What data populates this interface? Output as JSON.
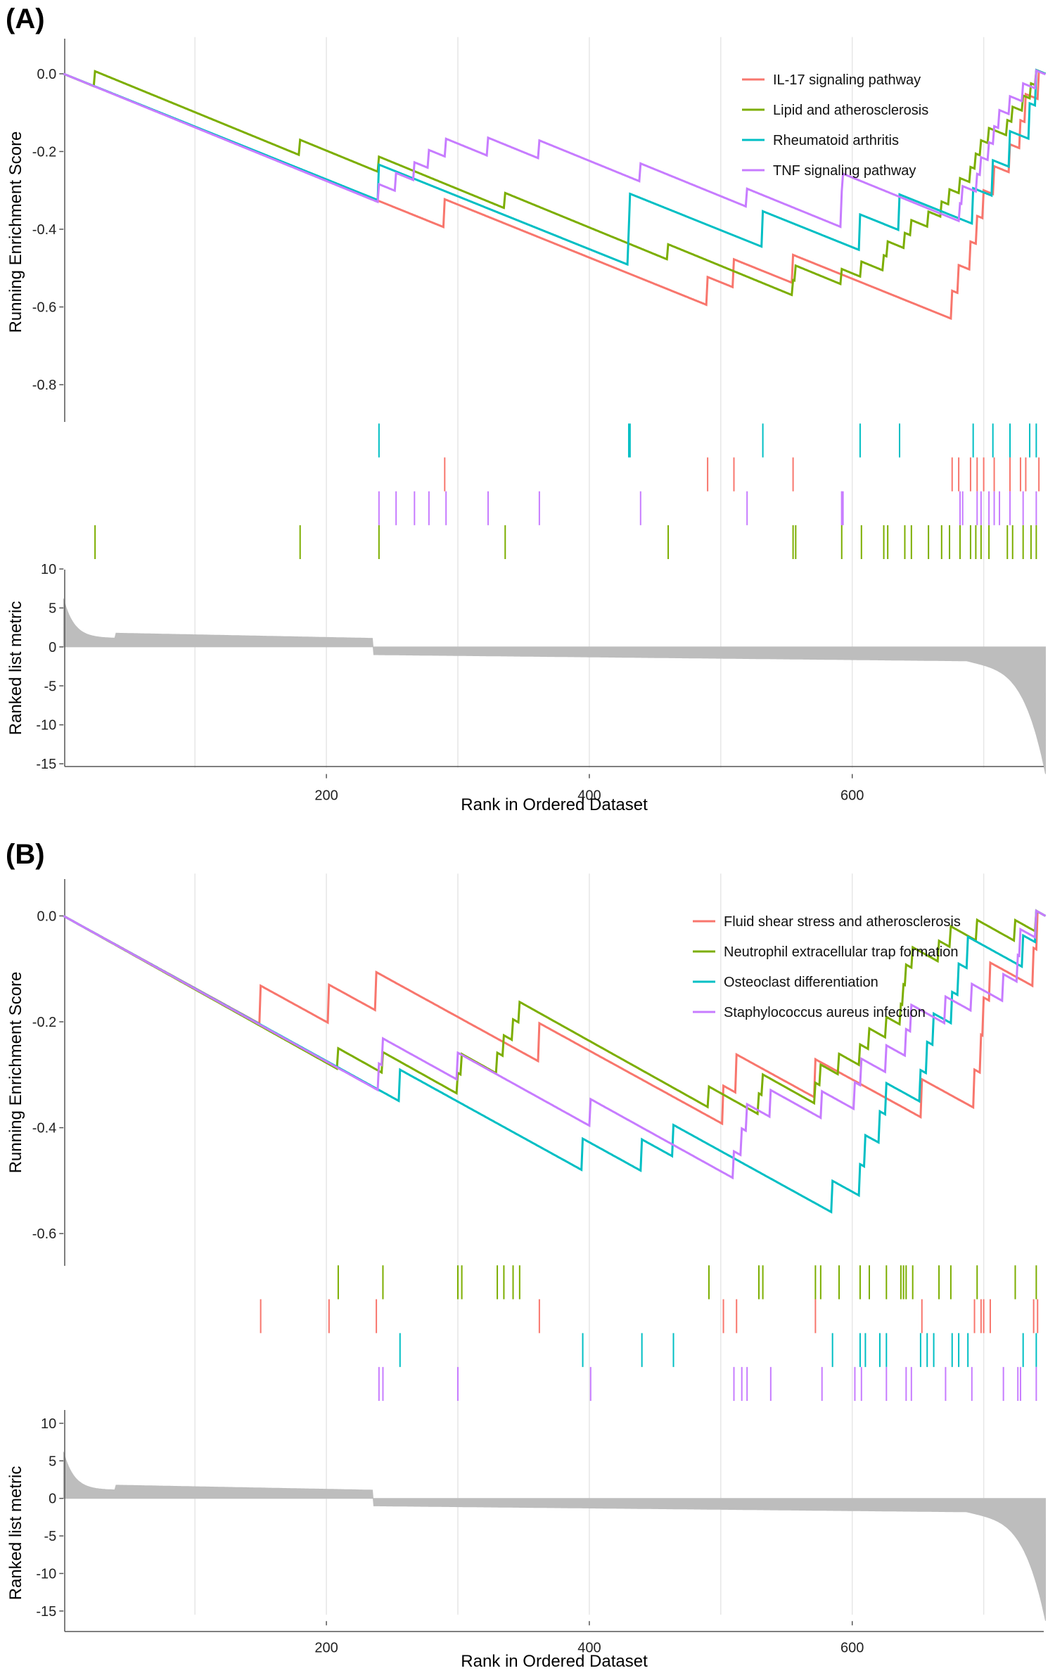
{
  "panels": [
    {
      "label": "(A)",
      "es_axis": {
        "title": "Running Enrichment Score",
        "ylim": [
          -0.9,
          0.04
        ],
        "ticks": [
          0.0,
          -0.2,
          -0.4,
          -0.6,
          -0.8
        ],
        "tick_labels": [
          "0.0",
          "-0.2",
          "-0.4",
          "-0.6",
          "-0.8"
        ]
      },
      "metric_axis": {
        "title": "Ranked list metric",
        "ylim": [
          -15.5,
          11
        ],
        "ticks": [
          10,
          5,
          0,
          -5,
          -10,
          -15
        ],
        "tick_labels": [
          "10",
          "5",
          "0",
          "-5",
          "-10",
          "-15"
        ]
      },
      "x_axis": {
        "title": "Rank in Ordered Dataset",
        "xlim": [
          0,
          747
        ],
        "ticks": [
          200,
          400,
          600
        ],
        "tick_labels": [
          "200",
          "400",
          "600"
        ],
        "minor_grid": [
          100,
          300,
          500,
          700
        ]
      },
      "legend_position": "top-right"
    },
    {
      "label": "(B)",
      "es_axis": {
        "title": "Running Enrichment Score",
        "ylim": [
          -0.66,
          0.04
        ],
        "ticks": [
          0.0,
          -0.2,
          -0.4,
          -0.6
        ],
        "tick_labels": [
          "0.0",
          "-0.2",
          "-0.4",
          "-0.6"
        ]
      },
      "metric_axis": {
        "title": "Ranked list metric",
        "ylim": [
          -15.5,
          12
        ],
        "ticks": [
          10,
          5,
          0,
          -5,
          -10,
          -15
        ],
        "tick_labels": [
          "10",
          "5",
          "0",
          "-5",
          "-10",
          "-15"
        ]
      },
      "x_axis": {
        "title": "Rank in Ordered Dataset",
        "xlim": [
          0,
          747
        ],
        "ticks": [
          200,
          400,
          600
        ],
        "tick_labels": [
          "200",
          "400",
          "600"
        ],
        "minor_grid": [
          100,
          300,
          500,
          700
        ]
      },
      "legend_position": "top-right"
    }
  ],
  "chart_data": [
    {
      "type": "line",
      "title": "(A)",
      "xlabel": "Rank in Ordered Dataset",
      "ylabel": "Running Enrichment Score",
      "xlim": [
        0,
        747
      ],
      "ylim": [
        -0.9,
        0.04
      ],
      "series": [
        {
          "name": "IL-17 signaling pathway",
          "color": "#F8766D",
          "hits": [
            290,
            490,
            510,
            555,
            676,
            681,
            690,
            695,
            700,
            708,
            720,
            728,
            732,
            742
          ]
        },
        {
          "name": "Lipid and atherosclerosis",
          "color": "#7CAE00",
          "hits": [
            24,
            180,
            240,
            336,
            460,
            555,
            557,
            592,
            607,
            624,
            627,
            640,
            645,
            658,
            668,
            674,
            682,
            690,
            694,
            698,
            704,
            718,
            722,
            730,
            736,
            740
          ]
        },
        {
          "name": "Rheumatoid arthritis",
          "color": "#00BFC4",
          "hits": [
            240,
            430,
            431,
            532,
            606,
            636,
            692,
            707,
            720,
            735,
            740
          ]
        },
        {
          "name": "TNF signaling pathway",
          "color": "#C77CFF",
          "hits": [
            240,
            253,
            267,
            278,
            291,
            323,
            362,
            439,
            520,
            592,
            592,
            593,
            682,
            684,
            695,
            698,
            704,
            708,
            712,
            720,
            730,
            740
          ]
        }
      ],
      "ranked_metric": {
        "start": 6.2,
        "plateau_high": 1.1,
        "step_rank": 236,
        "plateau_low": -1.0,
        "before_tail": -2.5,
        "end": -14.5,
        "n": 747
      }
    },
    {
      "type": "line",
      "title": "(B)",
      "xlabel": "Rank in Ordered Dataset",
      "ylabel": "Running Enrichment Score",
      "xlim": [
        0,
        747
      ],
      "ylim": [
        -0.66,
        0.04
      ],
      "series": [
        {
          "name": "Fluid shear stress and atherosclerosis",
          "color": "#F8766D",
          "hits": [
            150,
            202,
            238,
            362,
            502,
            512,
            572,
            653,
            693,
            698,
            700,
            705,
            738,
            741
          ]
        },
        {
          "name": "Neutrophil extracellular trap formation",
          "color": "#7CAE00",
          "hits": [
            209,
            243,
            300,
            303,
            330,
            335,
            342,
            347,
            491,
            529,
            532,
            572,
            576,
            590,
            606,
            613,
            626,
            637,
            639,
            641,
            646,
            666,
            675,
            695,
            724,
            740
          ]
        },
        {
          "name": "Osteoclast differentiation",
          "color": "#00BFC4",
          "hits": [
            256,
            395,
            440,
            464,
            585,
            606,
            610,
            621,
            626,
            652,
            657,
            662,
            676,
            681,
            688,
            730,
            740
          ]
        },
        {
          "name": "Staphylococcus aureus infection",
          "color": "#C77CFF",
          "hits": [
            240,
            243,
            300,
            401,
            510,
            516,
            520,
            538,
            577,
            602,
            607,
            626,
            641,
            645,
            671,
            691,
            715,
            726,
            728,
            740
          ]
        }
      ],
      "ranked_metric": {
        "start": 6.2,
        "plateau_high": 1.1,
        "step_rank": 236,
        "plateau_low": -1.0,
        "before_tail": -2.5,
        "end": -14.5,
        "n": 747
      }
    }
  ]
}
